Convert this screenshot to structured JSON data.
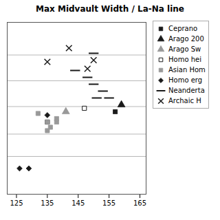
{
  "chart_data": {
    "type": "scatter",
    "title": "Max Midvault Width / La-Na line",
    "xlim": [
      122,
      167
    ],
    "xticks": [
      125,
      135,
      145,
      155,
      165
    ],
    "ylim": [
      0,
      10
    ],
    "yticks": [
      2.2,
      3.5,
      5.1,
      6.6,
      8.1
    ],
    "grid": true,
    "tick_labels": "x",
    "legend": "right",
    "series": [
      {
        "name": "Ceprano",
        "marker": "square",
        "color": "#1a1a1a",
        "x": [
          157
        ],
        "values": [
          4.8
        ]
      },
      {
        "name": "Arago 200",
        "marker": "triangle",
        "color": "#1a1a1a",
        "x": [
          159
        ],
        "values": [
          5.2
        ]
      },
      {
        "name": "Arago Sw",
        "marker": "triangle",
        "color": "#999999",
        "x": [
          141
        ],
        "values": [
          4.8
        ]
      },
      {
        "name": "Homo hei",
        "marker": "square_open",
        "color": "#1a1a1a",
        "x": [
          147,
          135
        ],
        "values": [
          5.0,
          4.2
        ]
      },
      {
        "name": "Asian Hom",
        "marker": "square",
        "color": "#999999",
        "x": [
          132,
          135,
          138,
          138,
          136,
          135
        ],
        "values": [
          4.7,
          4.2,
          4.2,
          4.4,
          3.9,
          3.7
        ]
      },
      {
        "name": "Homo erg",
        "marker": "diamond",
        "color": "#1a1a1a",
        "x": [
          126,
          129,
          135
        ],
        "values": [
          1.5,
          1.5,
          4.6
        ]
      },
      {
        "name": "Neanderta",
        "marker": "dash",
        "color": "#1a1a1a",
        "x": [
          150,
          144,
          148,
          150,
          153,
          151,
          155
        ],
        "values": [
          8.2,
          7.2,
          6.8,
          6.4,
          6.0,
          5.6,
          5.6
        ]
      },
      {
        "name": "Archaic H",
        "marker": "x",
        "color": "#1a1a1a",
        "x": [
          135,
          142,
          148,
          150
        ],
        "values": [
          7.7,
          8.5,
          7.3,
          7.8
        ]
      }
    ]
  }
}
